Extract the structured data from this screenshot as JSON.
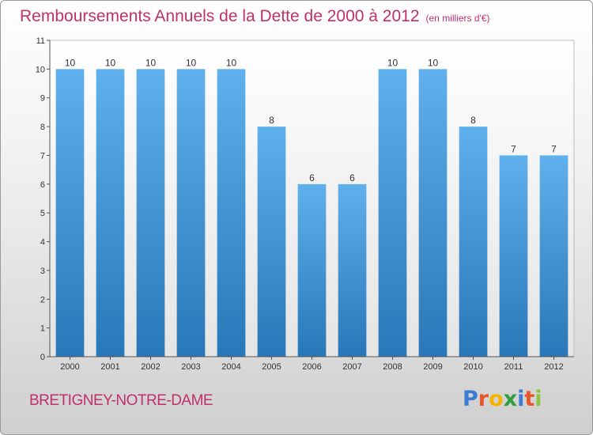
{
  "title": "Remboursements Annuels de la Dette de 2000 à 2012",
  "subtitle": "(en milliers d'€)",
  "commune": "BRETIGNEY-NOTRE-DAME",
  "logo": {
    "letters": [
      {
        "char": "P",
        "color": "#3a7bd5"
      },
      {
        "char": "r",
        "color": "#e8562a"
      },
      {
        "char": "o",
        "color": "#f4b400"
      },
      {
        "char": "x",
        "color": "#2e9e3e"
      },
      {
        "char": "i",
        "color": "#3a7bd5"
      },
      {
        "char": "t",
        "color": "#e8562a"
      },
      {
        "char": "i",
        "color": "#8cc63f"
      }
    ]
  },
  "colors": {
    "bar_light": "#5fb0ec",
    "bar_dark": "#2877b8",
    "axis": "#555555",
    "text": "#333333",
    "accent": "#c0306a"
  },
  "chart_data": {
    "type": "bar",
    "categories": [
      "2000",
      "2001",
      "2002",
      "2003",
      "2004",
      "2005",
      "2006",
      "2007",
      "2008",
      "2009",
      "2010",
      "2011",
      "2012"
    ],
    "values": [
      10,
      10,
      10,
      10,
      10,
      8,
      6,
      6,
      10,
      10,
      8,
      7,
      7
    ],
    "title": "Remboursements Annuels de la Dette de 2000 à 2012",
    "ylim": [
      0,
      11
    ],
    "yticks": [
      0,
      1,
      2,
      3,
      4,
      5,
      6,
      7,
      8,
      9,
      10,
      11
    ],
    "grid": false,
    "data_labels": true
  }
}
